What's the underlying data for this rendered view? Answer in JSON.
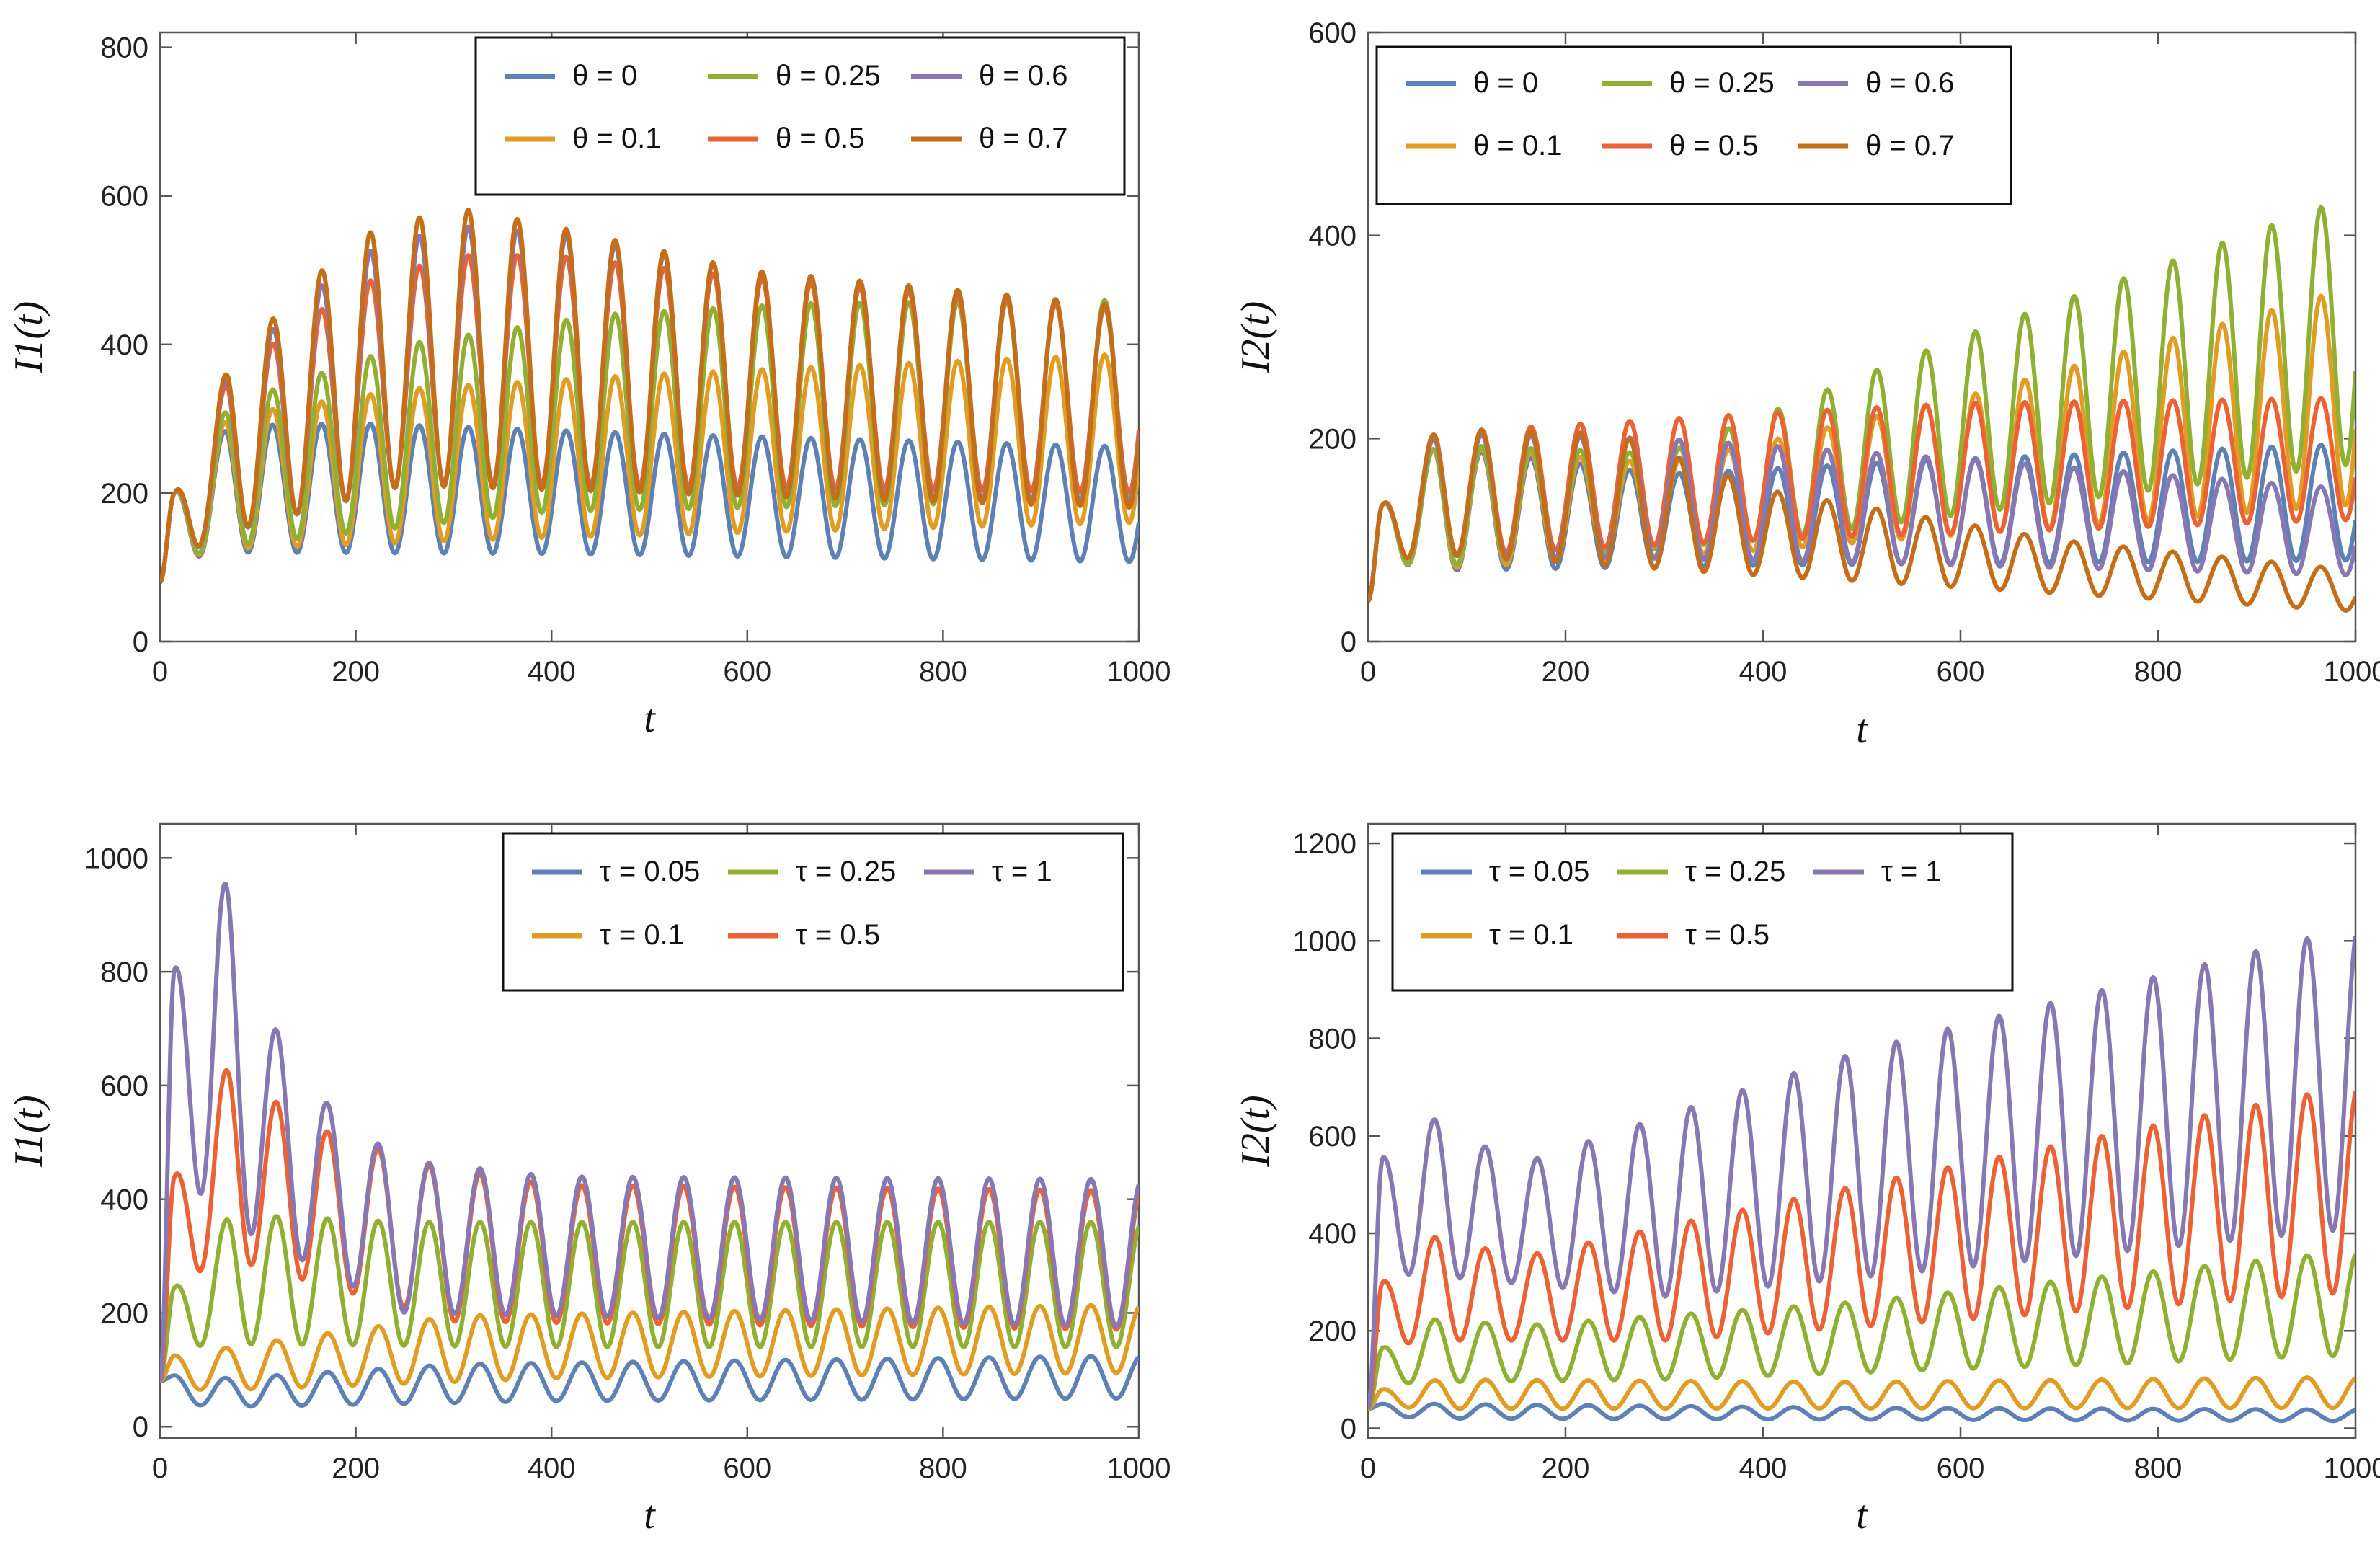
{
  "chart_data": [
    {
      "type": "line",
      "panel": "top-left",
      "xlabel": "t",
      "ylabel": "I1(t)",
      "xlim": [
        0,
        1000
      ],
      "ylim": [
        0,
        820
      ],
      "xticks": [
        0,
        200,
        400,
        600,
        800,
        1000
      ],
      "yticks": [
        0,
        200,
        400,
        600,
        800
      ],
      "legend_position": "top-right",
      "legend_columns": 3,
      "period": 50,
      "series": [
        {
          "name": "θ = 0",
          "color": "#5E81B5",
          "start": 80,
          "first_peak": 200,
          "first_trough": 110,
          "peak_levels": [
            [
              50,
              290
            ],
            [
              200,
              294
            ],
            [
              500,
              280
            ],
            [
              1000,
              262
            ]
          ],
          "trough_levels": [
            [
              80,
              120
            ],
            [
              400,
              118
            ],
            [
              1000,
              107
            ]
          ],
          "end": 255
        },
        {
          "name": "θ = 0.1",
          "color": "#E19C24",
          "start": 80,
          "first_peak": 200,
          "first_trough": 110,
          "peak_levels": [
            [
              50,
              300
            ],
            [
              250,
              340
            ],
            [
              500,
              360
            ],
            [
              1000,
              388
            ]
          ],
          "trough_levels": [
            [
              80,
              125
            ],
            [
              400,
              140
            ],
            [
              1000,
              160
            ]
          ],
          "end": 388
        },
        {
          "name": "θ = 0.25",
          "color": "#8FB032",
          "start": 80,
          "first_peak": 200,
          "first_trough": 110,
          "peak_levels": [
            [
              50,
              310
            ],
            [
              250,
              400
            ],
            [
              450,
              440
            ],
            [
              650,
              455
            ],
            [
              1000,
              460
            ]
          ],
          "trough_levels": [
            [
              80,
              130
            ],
            [
              400,
              175
            ],
            [
              1000,
              190
            ]
          ],
          "end": 458
        },
        {
          "name": "θ = 0.5",
          "color": "#EB6235",
          "start": 80,
          "first_peak": 200,
          "first_trough": 110,
          "peak_levels": [
            [
              50,
              340
            ],
            [
              200,
              480
            ],
            [
              300,
              520
            ],
            [
              400,
              520
            ],
            [
              600,
              490
            ],
            [
              1000,
              445
            ]
          ],
          "trough_levels": [
            [
              80,
              150
            ],
            [
              250,
              215
            ],
            [
              1000,
              200
            ]
          ],
          "end": 440
        },
        {
          "name": "θ = 0.6",
          "color": "#8778B3",
          "start": 80,
          "first_peak": 200,
          "first_trough": 110,
          "peak_levels": [
            [
              50,
              345
            ],
            [
              200,
              520
            ],
            [
              300,
              560
            ],
            [
              400,
              550
            ],
            [
              600,
              500
            ],
            [
              1000,
              450
            ]
          ],
          "trough_levels": [
            [
              80,
              150
            ],
            [
              250,
              210
            ],
            [
              1000,
              185
            ]
          ],
          "end": 445
        },
        {
          "name": "θ = 0.7",
          "color": "#C56E1A",
          "start": 80,
          "first_peak": 200,
          "first_trough": 110,
          "peak_levels": [
            [
              50,
              350
            ],
            [
              200,
              545
            ],
            [
              300,
              585
            ],
            [
              400,
              560
            ],
            [
              600,
              500
            ],
            [
              1000,
              450
            ]
          ],
          "trough_levels": [
            [
              80,
              152
            ],
            [
              250,
              210
            ],
            [
              1000,
              180
            ]
          ],
          "end": 448
        }
      ]
    },
    {
      "type": "line",
      "panel": "top-right",
      "xlabel": "t",
      "ylabel": "I2(t)",
      "xlim": [
        0,
        1000
      ],
      "ylim": [
        0,
        600
      ],
      "xticks": [
        0,
        200,
        400,
        600,
        800,
        1000
      ],
      "yticks": [
        0,
        200,
        400,
        600
      ],
      "legend_position": "top-left",
      "legend_columns": 3,
      "period": 50,
      "series": [
        {
          "name": "θ = 0",
          "color": "#5E81B5",
          "start": 40,
          "first_peak": 135,
          "first_trough": 80,
          "peak_levels": [
            [
              50,
              195
            ],
            [
              300,
              165
            ],
            [
              600,
              180
            ],
            [
              1000,
              195
            ]
          ],
          "trough_levels": [
            [
              80,
              70
            ],
            [
              400,
              75
            ],
            [
              1000,
              80
            ]
          ],
          "end": 190
        },
        {
          "name": "θ = 0.1",
          "color": "#E19C24",
          "start": 40,
          "first_peak": 135,
          "first_trough": 80,
          "peak_levels": [
            [
              50,
              195
            ],
            [
              300,
              175
            ],
            [
              600,
              240
            ],
            [
              1000,
              350
            ]
          ],
          "trough_levels": [
            [
              80,
              72
            ],
            [
              400,
              90
            ],
            [
              1000,
              135
            ]
          ],
          "end": 352
        },
        {
          "name": "θ = 0.25",
          "color": "#8FB032",
          "start": 40,
          "first_peak": 135,
          "first_trough": 80,
          "peak_levels": [
            [
              50,
              195
            ],
            [
              300,
              185
            ],
            [
              600,
              300
            ],
            [
              1000,
              440
            ]
          ],
          "trough_levels": [
            [
              80,
              75
            ],
            [
              400,
              100
            ],
            [
              1000,
              175
            ]
          ],
          "end": 438
        },
        {
          "name": "θ = 0.5",
          "color": "#EB6235",
          "start": 40,
          "first_peak": 135,
          "first_trough": 80,
          "peak_levels": [
            [
              50,
              205
            ],
            [
              400,
              225
            ],
            [
              600,
              235
            ],
            [
              1000,
              240
            ]
          ],
          "trough_levels": [
            [
              80,
              85
            ],
            [
              400,
              100
            ],
            [
              1000,
              120
            ]
          ],
          "end": 232
        },
        {
          "name": "θ = 0.6",
          "color": "#8778B3",
          "start": 40,
          "first_peak": 135,
          "first_trough": 80,
          "peak_levels": [
            [
              50,
              205
            ],
            [
              300,
              200
            ],
            [
              600,
              180
            ],
            [
              1000,
              150
            ]
          ],
          "trough_levels": [
            [
              80,
              85
            ],
            [
              400,
              80
            ],
            [
              1000,
              65
            ]
          ],
          "end": 142
        },
        {
          "name": "θ = 0.7",
          "color": "#C56E1A",
          "start": 40,
          "first_peak": 135,
          "first_trough": 80,
          "peak_levels": [
            [
              50,
              210
            ],
            [
              250,
              205
            ],
            [
              400,
              150
            ],
            [
              700,
              100
            ],
            [
              1000,
              70
            ]
          ],
          "trough_levels": [
            [
              80,
              85
            ],
            [
              400,
              65
            ],
            [
              1000,
              30
            ]
          ],
          "end": 68
        }
      ]
    },
    {
      "type": "line",
      "panel": "bottom-left",
      "xlabel": "t",
      "ylabel": "I1(t)",
      "xlim": [
        0,
        1000
      ],
      "ylim": [
        -20,
        1060
      ],
      "xticks": [
        0,
        200,
        400,
        600,
        800,
        1000
      ],
      "yticks": [
        0,
        200,
        400,
        600,
        800,
        1000
      ],
      "legend_position": "top-right",
      "legend_columns": 3,
      "period": 52,
      "series": [
        {
          "name": "τ = 0.05",
          "color": "#5E81B5",
          "start": 80,
          "first_peak": 90,
          "first_trough": 40,
          "peak_levels": [
            [
              70,
              85
            ],
            [
              300,
              110
            ],
            [
              1000,
              125
            ]
          ],
          "trough_levels": [
            [
              80,
              35
            ],
            [
              400,
              45
            ],
            [
              1000,
              50
            ]
          ],
          "end": 125
        },
        {
          "name": "τ = 0.1",
          "color": "#E19C24",
          "start": 80,
          "first_peak": 125,
          "first_trough": 65,
          "peak_levels": [
            [
              70,
              140
            ],
            [
              300,
              195
            ],
            [
              1000,
              215
            ]
          ],
          "trough_levels": [
            [
              80,
              65
            ],
            [
              400,
              85
            ],
            [
              1000,
              95
            ]
          ],
          "end": 215
        },
        {
          "name": "τ = 0.25",
          "color": "#8FB032",
          "start": 80,
          "first_peak": 245,
          "first_trough": 140,
          "peak_levels": [
            [
              60,
              375
            ],
            [
              250,
              360
            ],
            [
              1000,
              360
            ]
          ],
          "trough_levels": [
            [
              80,
              145
            ],
            [
              400,
              140
            ],
            [
              1000,
              140
            ]
          ],
          "end": 355
        },
        {
          "name": "τ = 0.5",
          "color": "#EB6235",
          "start": 80,
          "first_peak": 440,
          "first_trough": 260,
          "peak_levels": [
            [
              60,
              655
            ],
            [
              110,
              580
            ],
            [
              170,
              520
            ],
            [
              270,
              460
            ],
            [
              400,
              425
            ],
            [
              1000,
              415
            ]
          ],
          "trough_levels": [
            [
              80,
              290
            ],
            [
              300,
              185
            ],
            [
              1000,
              170
            ]
          ],
          "end": 410
        },
        {
          "name": "τ = 1",
          "color": "#8778B3",
          "start": 80,
          "first_peak": 805,
          "first_trough": 460,
          "peak_levels": [
            [
              60,
              1010
            ],
            [
              110,
              720
            ],
            [
              170,
              570
            ],
            [
              220,
              500
            ],
            [
              270,
              465
            ],
            [
              400,
              440
            ],
            [
              1000,
              435
            ]
          ],
          "trough_levels": [
            [
              80,
              350
            ],
            [
              250,
              200
            ],
            [
              1000,
              175
            ]
          ],
          "end": 430
        }
      ]
    },
    {
      "type": "line",
      "panel": "bottom-right",
      "xlabel": "t",
      "ylabel": "I2(t)",
      "xlim": [
        0,
        1000
      ],
      "ylim": [
        -20,
        1240
      ],
      "xticks": [
        0,
        200,
        400,
        600,
        800,
        1000
      ],
      "yticks": [
        0,
        200,
        400,
        600,
        800,
        1000,
        1200
      ],
      "legend_position": "top-left",
      "legend_columns": 3,
      "period": 52,
      "series": [
        {
          "name": "τ = 0.05",
          "color": "#5E81B5",
          "start": 40,
          "first_peak": 50,
          "first_trough": 25,
          "peak_levels": [
            [
              60,
              50
            ],
            [
              500,
              42
            ],
            [
              1000,
              38
            ]
          ],
          "trough_levels": [
            [
              80,
              20
            ],
            [
              1000,
              15
            ]
          ],
          "end": 35
        },
        {
          "name": "τ = 0.1",
          "color": "#E19C24",
          "start": 40,
          "first_peak": 80,
          "first_trough": 45,
          "peak_levels": [
            [
              60,
              100
            ],
            [
              500,
              95
            ],
            [
              1000,
              105
            ]
          ],
          "trough_levels": [
            [
              80,
              40
            ],
            [
              1000,
              42
            ]
          ],
          "end": 102
        },
        {
          "name": "τ = 0.25",
          "color": "#8FB032",
          "start": 40,
          "first_peak": 165,
          "first_trough": 90,
          "peak_levels": [
            [
              60,
              230
            ],
            [
              150,
              210
            ],
            [
              500,
              260
            ],
            [
              1000,
              365
            ]
          ],
          "trough_levels": [
            [
              80,
              95
            ],
            [
              300,
              100
            ],
            [
              1000,
              150
            ]
          ],
          "end": 362
        },
        {
          "name": "τ = 0.5",
          "color": "#EB6235",
          "start": 40,
          "first_peak": 300,
          "first_trough": 170,
          "peak_levels": [
            [
              60,
              405
            ],
            [
              150,
              350
            ],
            [
              500,
              500
            ],
            [
              1000,
              705
            ]
          ],
          "trough_levels": [
            [
              80,
              180
            ],
            [
              300,
              180
            ],
            [
              1000,
              280
            ]
          ],
          "end": 705
        },
        {
          "name": "τ = 1",
          "color": "#8778B3",
          "start": 40,
          "first_peak": 555,
          "first_trough": 320,
          "peak_levels": [
            [
              60,
              650
            ],
            [
              150,
              540
            ],
            [
              500,
              775
            ],
            [
              1000,
              1030
            ]
          ],
          "trough_levels": [
            [
              80,
              310
            ],
            [
              300,
              270
            ],
            [
              1000,
              410
            ]
          ],
          "end": 1020
        }
      ]
    }
  ]
}
